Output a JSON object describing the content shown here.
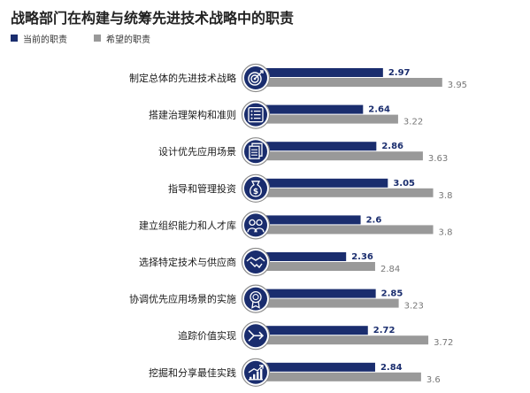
{
  "title": "战略部门在构建与统筹先进技术战略中的职责",
  "colors": {
    "current": "#1a2d6e",
    "hope": "#999999",
    "icon_ring": "#8c8c8c"
  },
  "chart_data": {
    "type": "bar",
    "orientation": "horizontal",
    "categories": [
      "制定总体的先进技术战略",
      "搭建治理架构和准则",
      "设计优先应用场景",
      "指导和管理投资",
      "建立组织能力和人才库",
      "选择特定技术与供应商",
      "协调优先应用场景的实施",
      "追踪价值实现",
      "挖掘和分享最佳实践"
    ],
    "icons": [
      "target-icon",
      "list-icon",
      "documents-icon",
      "money-bag-icon",
      "people-icon",
      "handshake-icon",
      "award-icon",
      "arrow-icon",
      "growth-chart-icon"
    ],
    "series": [
      {
        "name": "当前的职责",
        "values": [
          2.97,
          2.64,
          2.86,
          3.05,
          2.6,
          2.36,
          2.85,
          2.72,
          2.84
        ],
        "labels": [
          "2.97",
          "2.64",
          "2.86",
          "3.05",
          "2.6",
          "2.36",
          "2.85",
          "2.72",
          "2.84"
        ]
      },
      {
        "name": "希望的职责",
        "values": [
          3.95,
          3.22,
          3.63,
          3.8,
          3.8,
          2.84,
          3.23,
          3.72,
          3.6
        ],
        "labels": [
          "3.95",
          "3.22",
          "3.63",
          "3.8",
          "3.8",
          "2.84",
          "3.23",
          "3.72",
          "3.6"
        ]
      }
    ]
  }
}
